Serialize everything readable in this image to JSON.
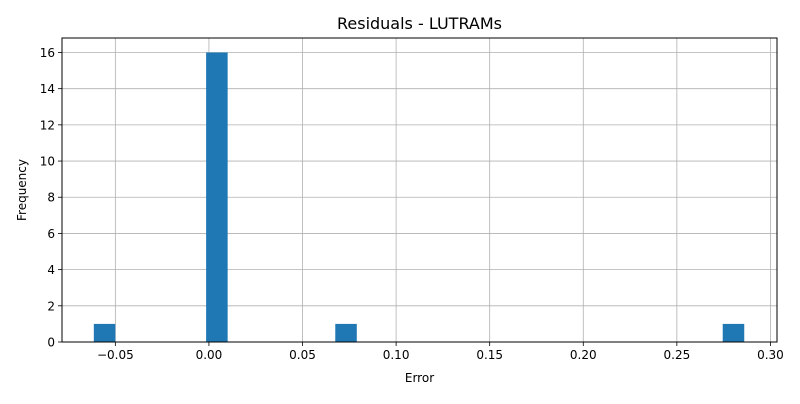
{
  "chart_data": {
    "type": "bar",
    "title": "Residuals - LUTRAMs",
    "xlabel": "Error",
    "ylabel": "Frequency",
    "xlim": [
      -0.0785,
      0.3035
    ],
    "ylim": [
      0,
      16.8
    ],
    "grid": true,
    "bin_width": 0.0115,
    "bins": [
      {
        "left": -0.0615,
        "right": -0.05,
        "count": 1
      },
      {
        "left": -0.0015,
        "right": 0.01,
        "count": 16
      },
      {
        "left": 0.0675,
        "right": 0.079,
        "count": 1
      },
      {
        "left": 0.2745,
        "right": 0.286,
        "count": 1
      }
    ],
    "x_ticks": [
      -0.05,
      0.0,
      0.05,
      0.1,
      0.15,
      0.2,
      0.25,
      0.3
    ],
    "x_tick_labels": [
      "−0.05",
      "0.00",
      "0.05",
      "0.10",
      "0.15",
      "0.20",
      "0.25",
      "0.30"
    ],
    "y_ticks": [
      0,
      2,
      4,
      6,
      8,
      10,
      12,
      14,
      16
    ],
    "y_tick_labels": [
      "0",
      "2",
      "4",
      "6",
      "8",
      "10",
      "12",
      "14",
      "16"
    ],
    "colors": {
      "bar": "#1f77b4",
      "grid": "#b0b0b0",
      "axis": "#000000"
    }
  }
}
